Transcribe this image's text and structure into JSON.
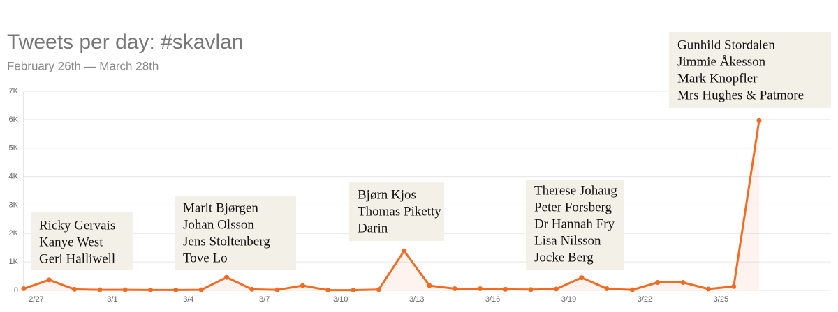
{
  "chart_data": {
    "type": "line",
    "title": "Tweets per day: #skavlan",
    "subtitle": "February 26th — March 28th",
    "categories": [
      "2/27",
      null,
      null,
      "3/1",
      null,
      null,
      "3/4",
      null,
      null,
      "3/7",
      null,
      null,
      "3/10",
      null,
      null,
      "3/13",
      null,
      null,
      "3/16",
      null,
      null,
      "3/19",
      null,
      null,
      "3/22",
      null,
      null,
      "3/25",
      null,
      null
    ],
    "series": [
      {
        "name": "Tweets",
        "color": "#f26b21",
        "values": [
          60,
          370,
          40,
          20,
          20,
          15,
          15,
          20,
          460,
          40,
          20,
          170,
          10,
          10,
          30,
          1390,
          170,
          60,
          60,
          40,
          30,
          50,
          450,
          60,
          20,
          280,
          280,
          50,
          140,
          5970
        ]
      }
    ],
    "ylim": [
      0,
      7000
    ],
    "yticks": [
      0,
      {
        "value": 1000,
        "label": "1K"
      },
      {
        "value": 2000,
        "label": "2K"
      },
      {
        "value": 3000,
        "label": "3K"
      },
      {
        "value": 4000,
        "label": "4K"
      },
      {
        "value": 5000,
        "label": "5K"
      },
      {
        "value": 6000,
        "label": "6K"
      },
      {
        "value": 7000,
        "label": "7K"
      }
    ],
    "grid": true,
    "annotations": [
      [
        "Ricky Gervais",
        "Kanye West",
        "Geri Halliwell"
      ],
      [
        "Marit Bjørgen",
        "Johan Olsson",
        "Jens Stoltenberg",
        "Tove Lo"
      ],
      [
        "Bjørn Kjos",
        "Thomas Piketty",
        "Darin"
      ],
      [
        "Therese Johaug",
        "Peter Forsberg",
        "Dr Hannah Fry",
        "Lisa Nilsson",
        "Jocke Berg"
      ],
      [
        "Gunhild Stordalen",
        "Jimmie Åkesson",
        "Mark Knopfler",
        "Mrs Hughes & Patmore"
      ]
    ]
  }
}
